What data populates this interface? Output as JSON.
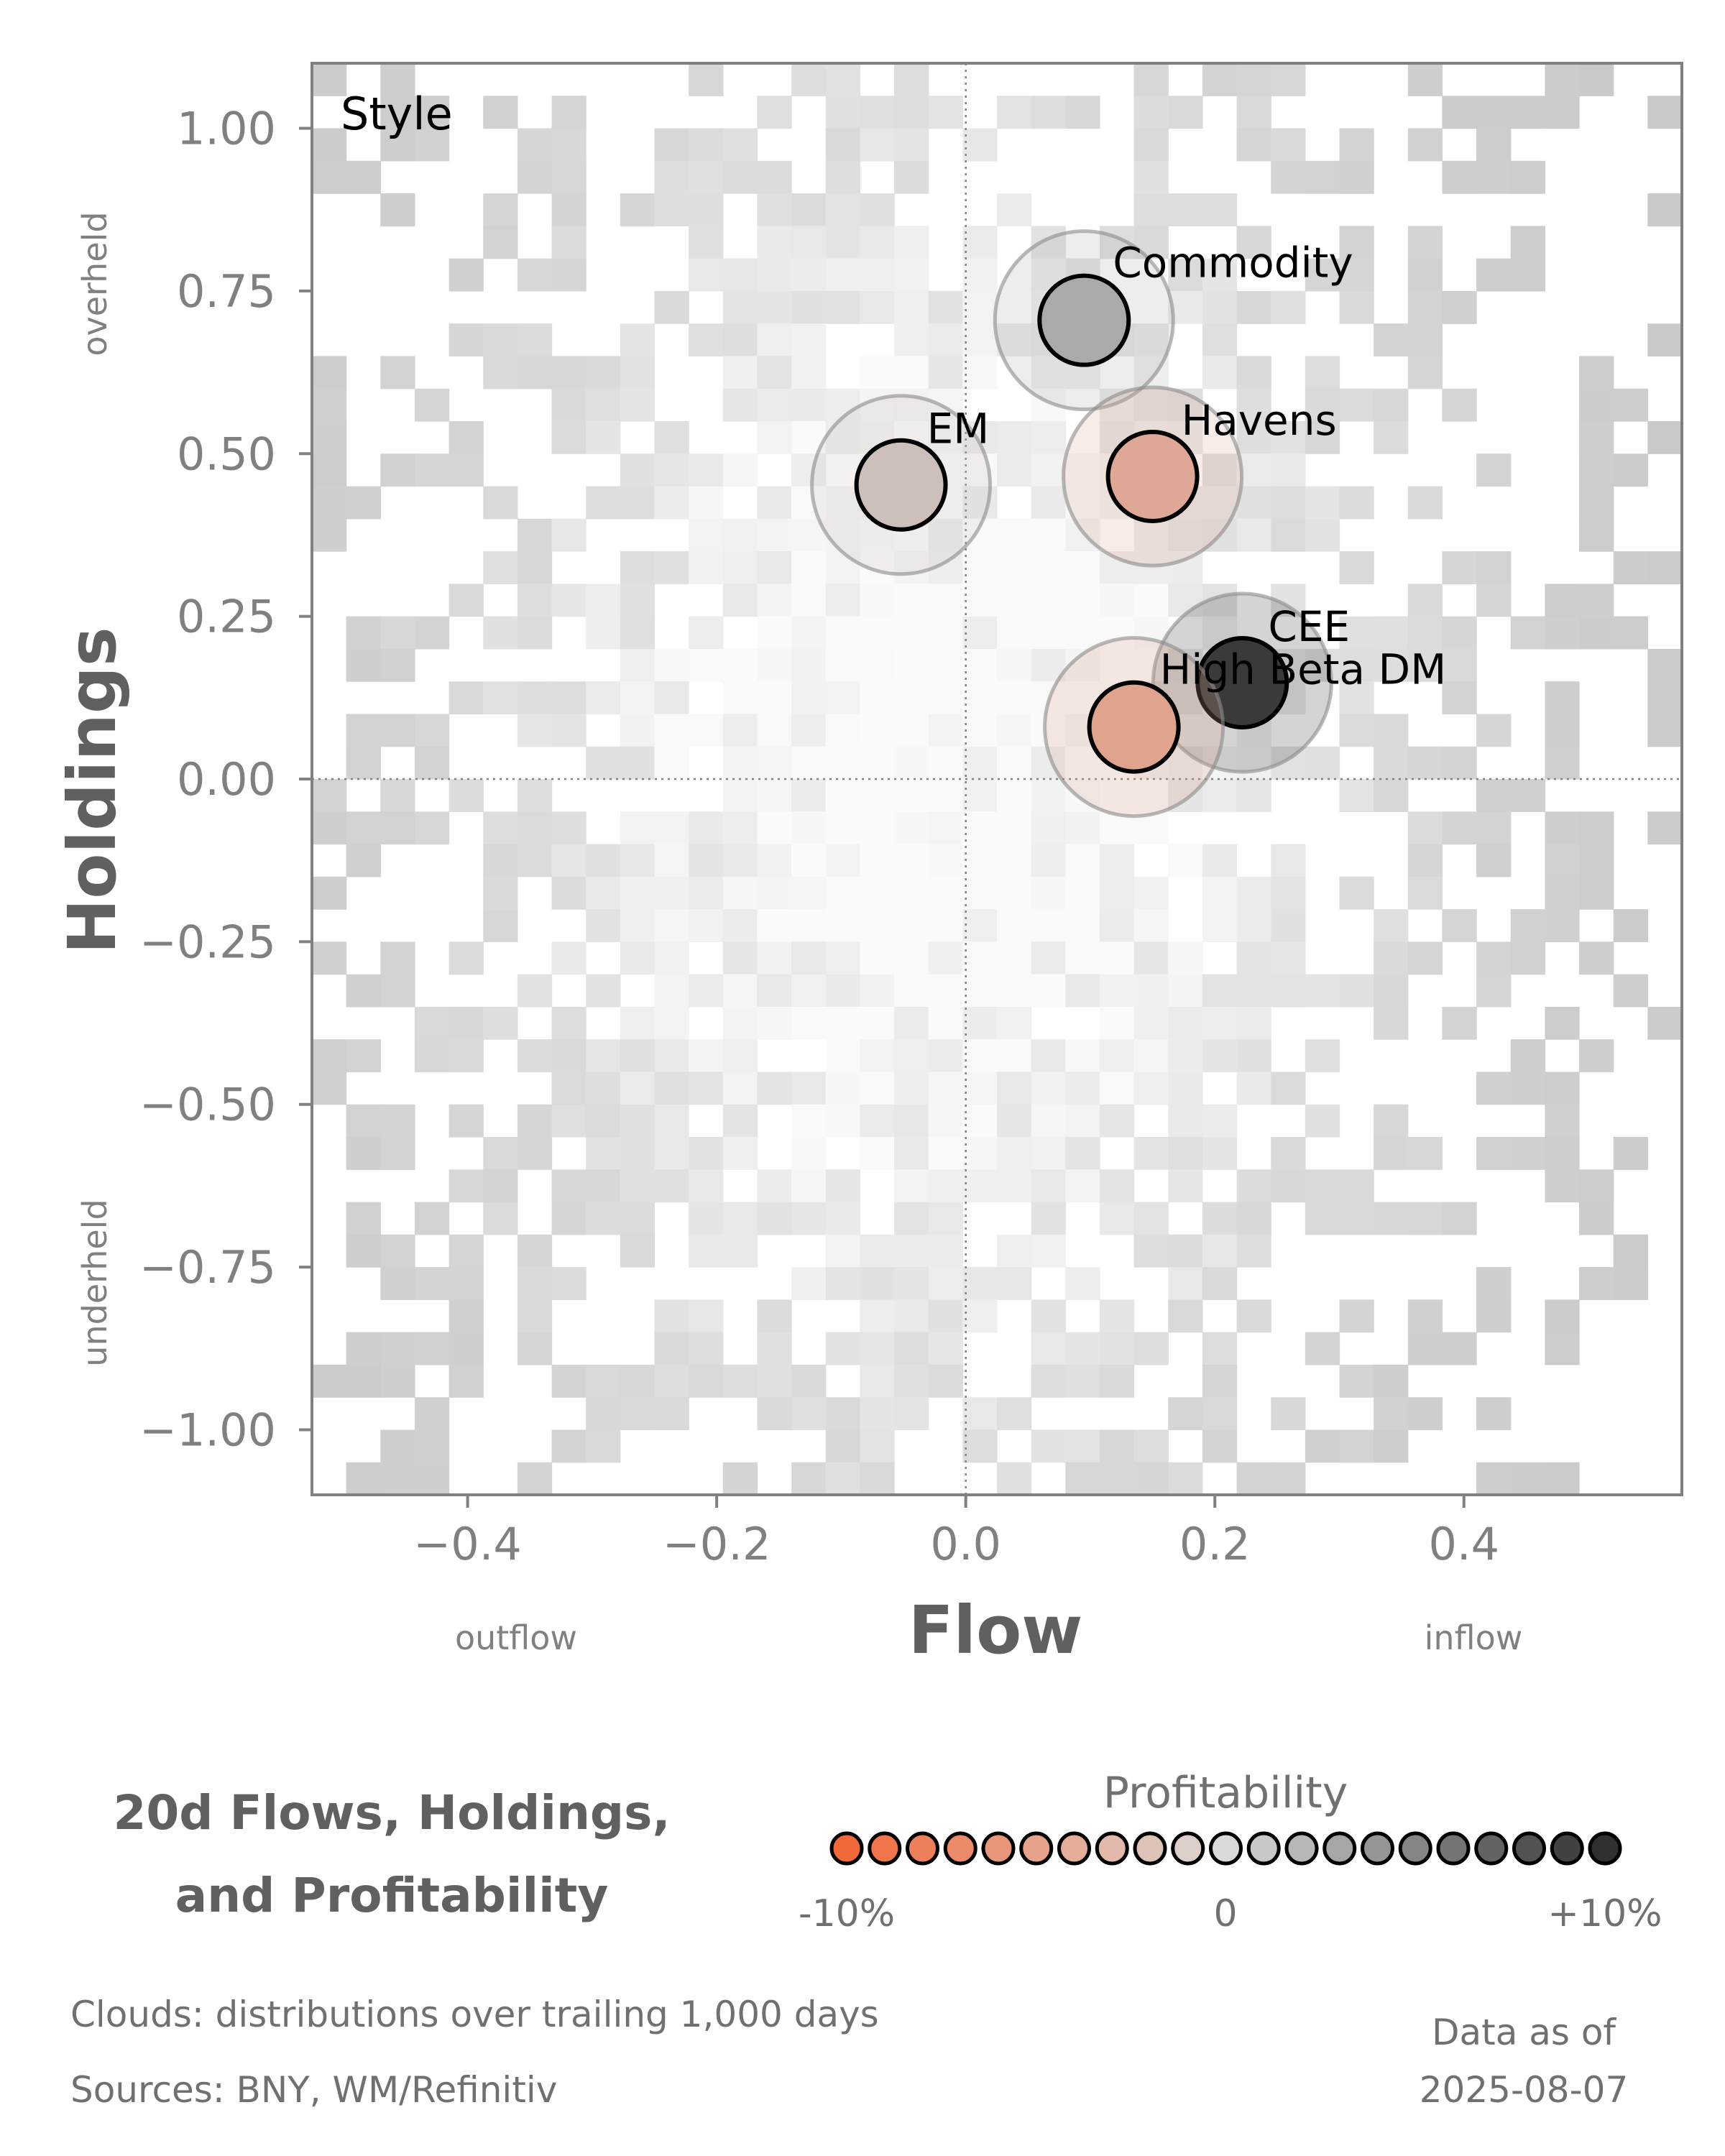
{
  "chart_data": {
    "type": "scatter",
    "panel_title": "Style",
    "xlabel": "Flow",
    "ylabel": "Holdings",
    "xlim": [
      -0.525,
      0.575
    ],
    "ylim": [
      -1.1,
      1.1
    ],
    "x_ticks": [
      -0.4,
      -0.2,
      0.0,
      0.2,
      0.4
    ],
    "x_tick_labels": [
      "−0.4",
      "−0.2",
      "0.0",
      "0.2",
      "0.4"
    ],
    "y_ticks": [
      1.0,
      0.75,
      0.5,
      0.25,
      0.0,
      -0.25,
      -0.5,
      -0.75,
      -1.0
    ],
    "y_tick_labels": [
      "1.00",
      "0.75",
      "0.50",
      "0.25",
      "0.00",
      "−0.25",
      "−0.50",
      "−0.75",
      "−1.00"
    ],
    "x_annotations": {
      "left": "outflow",
      "right": "inflow"
    },
    "y_annotations": {
      "top": "overheld",
      "bottom": "underheld"
    },
    "reference_lines": {
      "x": 0.0,
      "y": 0.0
    },
    "background": "2D histogram density cloud of trailing 1,000-day distributions",
    "points": [
      {
        "label": "Commodity",
        "x": 0.095,
        "y": 0.705,
        "color": "#a9abaa"
      },
      {
        "label": "EM",
        "x": -0.052,
        "y": 0.452,
        "color": "#cdbfba"
      },
      {
        "label": "Havens",
        "x": 0.15,
        "y": 0.465,
        "color": "#dea796"
      },
      {
        "label": "CEE",
        "x": 0.222,
        "y": 0.148,
        "color": "#3a3a3a"
      },
      {
        "label": "High Beta DM",
        "x": 0.135,
        "y": 0.08,
        "color": "#e0a38e"
      }
    ],
    "colorbar": {
      "title": "Profitability",
      "min_label": "-10%",
      "mid_label": "0",
      "max_label": "+10%",
      "steps": 21,
      "low_color": "#f26a3a",
      "mid_color": "#d9d9d9",
      "high_color": "#303030"
    }
  },
  "footer": {
    "title_line1": "20d Flows, Holdings,",
    "title_line2": "and Profitability",
    "clouds_note": "Clouds:  distributions over trailing 1,000 days",
    "sources": "Sources:  BNY, WM/Refinitiv",
    "asof_label": "Data as of",
    "asof_date": "2025-08-07"
  }
}
